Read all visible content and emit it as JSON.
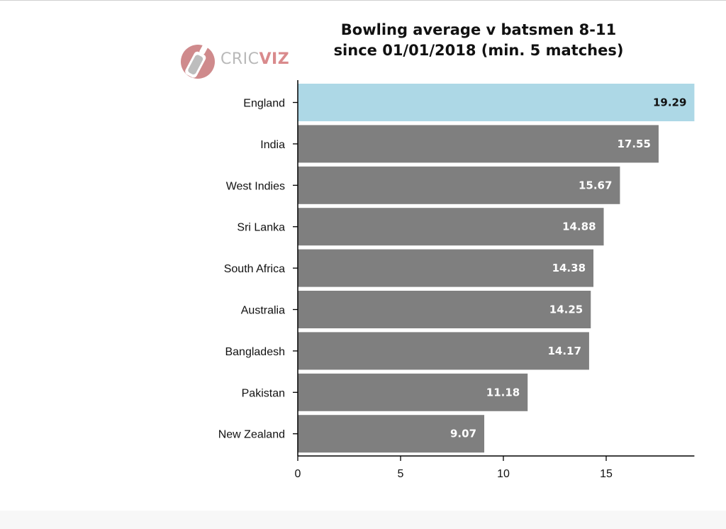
{
  "logo": {
    "text_a": "CRIC",
    "text_b": "VIZ"
  },
  "chart_data": {
    "type": "bar",
    "orientation": "horizontal",
    "title": "Bowling average v batsmen 8-11",
    "subtitle": "since 01/01/2018 (min. 5 matches)",
    "categories": [
      "England",
      "India",
      "West Indies",
      "Sri Lanka",
      "South Africa",
      "Australia",
      "Bangladesh",
      "Pakistan",
      "New Zealand"
    ],
    "values": [
      19.29,
      17.55,
      15.67,
      14.88,
      14.38,
      14.25,
      14.17,
      11.18,
      9.07
    ],
    "data_labels": [
      "19.29",
      "17.55",
      "15.67",
      "14.88",
      "14.38",
      "14.25",
      "14.17",
      "11.18",
      "9.07"
    ],
    "highlight_category": "England",
    "x_ticks": [
      0,
      5,
      10,
      15
    ],
    "xlim": [
      0,
      19.29
    ],
    "grid": false,
    "colors": {
      "bar": "#7f7f7f",
      "highlight": "#add8e6",
      "label_on_bar": "#ffffff",
      "label_on_highlight": "#111111"
    }
  }
}
